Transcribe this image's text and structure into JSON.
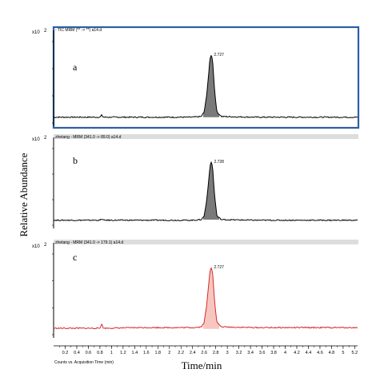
{
  "figure": {
    "y_axis_label": "Relative Abundance",
    "x_axis_label": "Time/min",
    "x_axis_caption": "Counts vs. Acquisition Time (min)",
    "x_ticks": [
      "0.2",
      "0.4",
      "0.6",
      "0.8",
      "1",
      "1.2",
      "1.4",
      "1.6",
      "1.8",
      "2",
      "2.2",
      "2.4",
      "2.6",
      "2.8",
      "3",
      "3.2",
      "3.4",
      "3.6",
      "3.8",
      "4",
      "4.2",
      "4.4",
      "4.6",
      "4.8",
      "5",
      "5.2"
    ]
  },
  "chart_data": [
    {
      "type": "line",
      "panel_letter": "a",
      "exponent_label": "x10",
      "exponent_power": "2",
      "header": "- TIC MRM (** -> **) a14.d",
      "peak_label": "2.727",
      "color": "#000000",
      "fill_color": "#7a7a7a",
      "selected_border_color": "#2d5fa6",
      "x": [
        0.05,
        0.5,
        0.8,
        0.83,
        0.86,
        1.5,
        2.4,
        2.55,
        2.6,
        2.64,
        2.68,
        2.7,
        2.727,
        2.75,
        2.78,
        2.82,
        2.9,
        3.5,
        4.5,
        5.25
      ],
      "y": [
        0.04,
        0.04,
        0.04,
        0.07,
        0.04,
        0.04,
        0.04,
        0.05,
        0.12,
        0.35,
        0.72,
        0.93,
        1.0,
        0.86,
        0.45,
        0.12,
        0.05,
        0.04,
        0.04,
        0.04
      ],
      "xlim": [
        0.0,
        5.25
      ]
    },
    {
      "type": "line",
      "panel_letter": "b",
      "exponent_label": "x10",
      "exponent_power": "2",
      "header": "zhetang - MRM (341.0 -> 89.0) a14.d",
      "peak_label": "2.728",
      "color": "#000000",
      "fill_color": "#7a7a7a",
      "x": [
        0.05,
        0.5,
        0.8,
        0.83,
        0.86,
        1.5,
        2.4,
        2.55,
        2.6,
        2.64,
        2.68,
        2.7,
        2.728,
        2.75,
        2.78,
        2.82,
        2.9,
        3.5,
        4.5,
        5.25
      ],
      "y": [
        0.03,
        0.03,
        0.03,
        0.05,
        0.03,
        0.03,
        0.03,
        0.04,
        0.1,
        0.33,
        0.7,
        0.92,
        1.0,
        0.85,
        0.44,
        0.1,
        0.04,
        0.03,
        0.03,
        0.03
      ],
      "xlim": [
        0.0,
        5.25
      ]
    },
    {
      "type": "line",
      "panel_letter": "c",
      "exponent_label": "x10",
      "exponent_power": "2",
      "header": "zhetang - MRM (341.0 -> 179.1) a14.d",
      "peak_label": "2.727",
      "color": "#d62a2a",
      "fill_color": "#f7c6c0",
      "x": [
        0.05,
        0.5,
        0.8,
        0.83,
        0.86,
        1.5,
        2.4,
        2.55,
        2.6,
        2.64,
        2.68,
        2.7,
        2.727,
        2.75,
        2.78,
        2.82,
        2.9,
        3.5,
        4.5,
        5.25
      ],
      "y": [
        0.05,
        0.05,
        0.05,
        0.12,
        0.05,
        0.06,
        0.06,
        0.07,
        0.14,
        0.38,
        0.74,
        0.94,
        1.0,
        0.87,
        0.46,
        0.14,
        0.07,
        0.06,
        0.06,
        0.06
      ],
      "xlim": [
        0.0,
        5.25
      ]
    }
  ]
}
